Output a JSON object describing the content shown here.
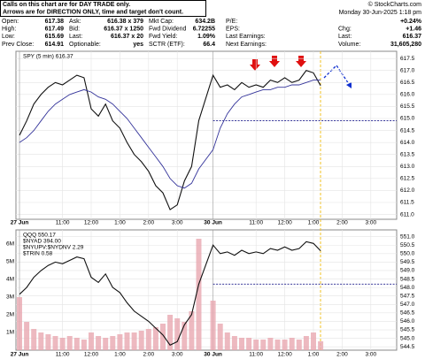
{
  "header": {
    "notice": [
      "Calls on this chart are for DAY TRADE only.",
      "Arrows are for DIRECTION ONLY, time and target don't count."
    ],
    "brand": "© StockCharts.com",
    "datetime": "Monday  30-Jun-2025  1:18 pm",
    "quote": {
      "rows": [
        [
          {
            "label": "Open:",
            "value": "617.38"
          },
          {
            "label": "Ask:",
            "value": "616.38 x 379"
          },
          {
            "label": "Mkt Cap:",
            "value": "634.2B"
          },
          {
            "label": "P/E:"
          },
          {
            "value": "+0.24%"
          }
        ],
        [
          {
            "label": "High:",
            "value": "617.49"
          },
          {
            "label": "Bid:",
            "value": "616.37 x 1250"
          },
          {
            "label": "Fwd Dividend",
            "value": "6.72255"
          },
          {
            "label": "EPS:"
          },
          {
            "label": "Chg:",
            "value": "+1.46"
          }
        ],
        [
          {
            "label": "Low:",
            "value": "615.69"
          },
          {
            "label": "Last:",
            "value": "616.37 x 20"
          },
          {
            "label": "Fwd Yield:",
            "value": "1.09%"
          },
          {
            "label": "Last Earnings:"
          },
          {
            "label": "Last:",
            "value": "616.37"
          }
        ],
        [
          {
            "label": "Prev Close:",
            "value": "614.91"
          },
          {
            "label": "Optionable:",
            "value": "yes"
          },
          {
            "label": "SCTR (ETF):",
            "value": "66.4"
          },
          {
            "label": "Next Earnings:"
          },
          {
            "label": "Volume:",
            "value": "31,605,280"
          }
        ]
      ]
    }
  },
  "chart_data": [
    {
      "type": "line",
      "legend": "SPY (5 min) 616.37",
      "categories": [
        "27 Jun",
        null,
        null,
        null,
        null,
        null,
        "11:00",
        null,
        null,
        null,
        "12:00",
        null,
        null,
        null,
        "1:00",
        null,
        null,
        null,
        "2:00",
        null,
        null,
        null,
        "3:00",
        null,
        null,
        null,
        "30 Jun",
        null,
        null,
        null,
        null,
        null,
        "11:00",
        null,
        null,
        null,
        "12:00",
        null,
        null,
        null,
        "1:00",
        null,
        null,
        null,
        "2:00",
        null,
        null,
        null,
        "3:00",
        null,
        null,
        null
      ],
      "series": [
        {
          "color": "#111111",
          "values": [
            614.3,
            614.9,
            615.6,
            616.0,
            616.3,
            616.5,
            616.4,
            616.6,
            616.8,
            616.7,
            615.4,
            615.1,
            615.6,
            614.9,
            614.6,
            614.0,
            613.5,
            613.2,
            612.8,
            612.2,
            611.9,
            611.2,
            611.4,
            612.4,
            613.0,
            614.91,
            616.8,
            616.3,
            616.4,
            616.2,
            616.5,
            616.3,
            616.4,
            616.3,
            616.6,
            616.5,
            616.7,
            616.5,
            616.6,
            617.0,
            616.9,
            616.37,
            null,
            null,
            null,
            null,
            null,
            null,
            null,
            null,
            null,
            null
          ]
        },
        {
          "color": "#33339a",
          "values": [
            614.0,
            614.2,
            614.5,
            614.9,
            615.3,
            615.6,
            615.8,
            616.0,
            616.1,
            616.2,
            616.1,
            615.9,
            615.8,
            615.6,
            615.3,
            615.0,
            614.6,
            614.2,
            613.8,
            613.4,
            613.0,
            612.5,
            612.2,
            612.1,
            612.3,
            612.9,
            613.7,
            614.6,
            615.2,
            615.6,
            615.9,
            616.0,
            616.1,
            616.2,
            616.2,
            616.3,
            616.3,
            616.4,
            616.4,
            616.5,
            616.6,
            616.6,
            null,
            null,
            null,
            null,
            null,
            null,
            null,
            null,
            null,
            null
          ]
        }
      ],
      "hline": 614.91,
      "ylim": [
        610.8,
        617.8
      ],
      "yticks": [
        {
          "value": 611,
          "label": "611.0"
        },
        {
          "value": 611.5,
          "label": "611.5"
        },
        {
          "value": 612,
          "label": "612.0"
        },
        {
          "value": 612.5,
          "label": "612.5"
        },
        {
          "value": 613,
          "label": "613.0"
        },
        {
          "value": 613.5,
          "label": "613.5"
        },
        {
          "value": 614,
          "label": "614.0"
        },
        {
          "value": 614.5,
          "label": "614.5"
        },
        {
          "value": 615,
          "label": "615.0"
        },
        {
          "value": 615.5,
          "label": "615.5"
        },
        {
          "value": 616,
          "label": "616.0"
        },
        {
          "value": 616.5,
          "label": "616.5"
        },
        {
          "value": 617,
          "label": "617.0"
        },
        {
          "value": 617.5,
          "label": "617.5"
        }
      ],
      "grid": true
    },
    {
      "type": "line",
      "legend": [
        "QQQ 550.17",
        "$NYAD 394.00",
        "$NYUPV:$NYDNV 2.29",
        "$TRIN 0.58"
      ],
      "categories": [
        "27 Jun",
        null,
        null,
        null,
        null,
        null,
        "11:00",
        null,
        null,
        null,
        "12:00",
        null,
        null,
        null,
        "1:00",
        null,
        null,
        null,
        "2:00",
        null,
        null,
        null,
        "3:00",
        null,
        null,
        null,
        "30 Jun",
        null,
        null,
        null,
        null,
        null,
        "11:00",
        null,
        null,
        null,
        "12:00",
        null,
        null,
        null,
        "1:00",
        null,
        null,
        null,
        "2:00",
        null,
        null,
        null,
        "3:00",
        null,
        null,
        null
      ],
      "series": [
        {
          "color": "#111111",
          "values": [
            547.6,
            548.0,
            548.6,
            549.0,
            549.3,
            549.5,
            549.4,
            549.6,
            549.8,
            549.7,
            548.6,
            548.3,
            548.8,
            548.0,
            547.7,
            547.1,
            546.6,
            546.3,
            546.0,
            545.6,
            545.2,
            544.6,
            544.8,
            545.8,
            546.4,
            548.2,
            550.5,
            550.0,
            550.1,
            549.9,
            550.2,
            550.0,
            550.1,
            550.0,
            550.3,
            550.2,
            550.4,
            550.2,
            550.3,
            550.7,
            550.6,
            550.17,
            null,
            null,
            null,
            null,
            null,
            null,
            null,
            null,
            null,
            null
          ]
        }
      ],
      "volume": {
        "color": "#e8a8b0",
        "values": [
          3.0,
          1.6,
          1.2,
          1.0,
          0.9,
          0.8,
          0.7,
          0.8,
          0.7,
          0.6,
          1.0,
          0.8,
          0.7,
          0.8,
          0.9,
          1.0,
          1.0,
          1.1,
          1.2,
          1.3,
          1.5,
          2.0,
          1.8,
          1.6,
          2.2,
          6.3,
          2.8,
          1.5,
          1.0,
          0.8,
          0.7,
          0.7,
          0.6,
          0.6,
          0.7,
          0.6,
          0.6,
          0.7,
          0.6,
          0.8,
          1.0,
          0.5,
          null,
          null,
          null,
          null,
          null,
          null,
          null,
          null,
          null,
          null
        ],
        "ylim": [
          0,
          6.8
        ],
        "yticks": [
          {
            "value": 1,
            "label": "1M"
          },
          {
            "value": 2,
            "label": "2M"
          },
          {
            "value": 3,
            "label": "3M"
          },
          {
            "value": 4,
            "label": "4M"
          },
          {
            "value": 5,
            "label": "5M"
          },
          {
            "value": 6,
            "label": "6M"
          }
        ]
      },
      "hline": 548.2,
      "ylim": [
        544.3,
        551.4
      ],
      "yticks": [
        {
          "value": 544.5,
          "label": "544.5"
        },
        {
          "value": 545,
          "label": "545.0"
        },
        {
          "value": 545.5,
          "label": "545.5"
        },
        {
          "value": 546,
          "label": "546.0"
        },
        {
          "value": 546.5,
          "label": "546.5"
        },
        {
          "value": 547,
          "label": "547.0"
        },
        {
          "value": 547.5,
          "label": "547.5"
        },
        {
          "value": 548,
          "label": "548.0"
        },
        {
          "value": 548.5,
          "label": "548.5"
        },
        {
          "value": 549,
          "label": "549.0"
        },
        {
          "value": 549.5,
          "label": "549.5"
        },
        {
          "value": 550,
          "label": "550.0"
        },
        {
          "value": 550.5,
          "label": "550.5"
        },
        {
          "value": 551,
          "label": "551.0"
        }
      ],
      "grid": true
    }
  ]
}
